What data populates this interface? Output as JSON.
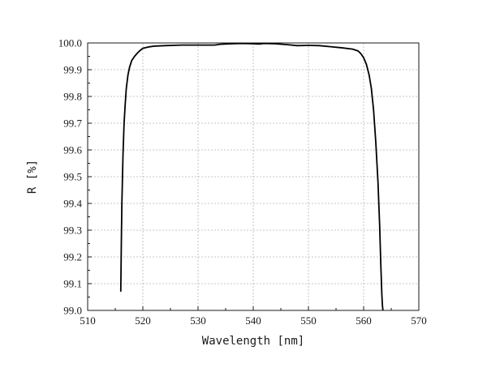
{
  "chart_data": {
    "type": "line",
    "xlabel": "Wavelength [nm]",
    "ylabel": "R [%]",
    "xlim": [
      510,
      570
    ],
    "ylim": [
      99.0,
      100.0
    ],
    "x_ticks": [
      "510",
      "520",
      "530",
      "540",
      "550",
      "560",
      "570"
    ],
    "y_ticks": [
      "99.0",
      "99.1",
      "99.2",
      "99.3",
      "99.4",
      "99.5",
      "99.6",
      "99.7",
      "99.8",
      "99.9",
      "100.0"
    ],
    "grid": true,
    "series": [
      {
        "color": "#000000",
        "x": [
          516.0,
          516.1,
          516.2,
          516.4,
          516.6,
          516.8,
          517.0,
          517.3,
          517.6,
          518.0,
          518.5,
          519.0,
          519.5,
          520.0,
          521.0,
          522.0,
          524.0,
          527.0,
          530.0,
          533.0,
          534.0,
          536.0,
          538.0,
          540.0,
          541.0,
          542.0,
          544.0,
          546.0,
          548.0,
          550.0,
          552.0,
          554.0,
          556.0,
          558.0,
          559.0,
          559.5,
          560.0,
          560.5,
          561.0,
          561.4,
          561.8,
          562.2,
          562.6,
          562.9,
          563.1,
          563.3,
          563.4,
          563.5
        ],
        "y": [
          99.07,
          99.25,
          99.4,
          99.58,
          99.7,
          99.77,
          99.83,
          99.88,
          99.91,
          99.935,
          99.95,
          99.962,
          99.972,
          99.98,
          99.985,
          99.988,
          99.99,
          99.992,
          99.992,
          99.992,
          99.995,
          99.997,
          99.998,
          99.997,
          99.996,
          99.998,
          99.997,
          99.994,
          99.99,
          99.991,
          99.99,
          99.986,
          99.982,
          99.977,
          99.97,
          99.96,
          99.945,
          99.92,
          99.88,
          99.83,
          99.75,
          99.63,
          99.48,
          99.32,
          99.18,
          99.06,
          99.02,
          99.0
        ]
      }
    ]
  }
}
